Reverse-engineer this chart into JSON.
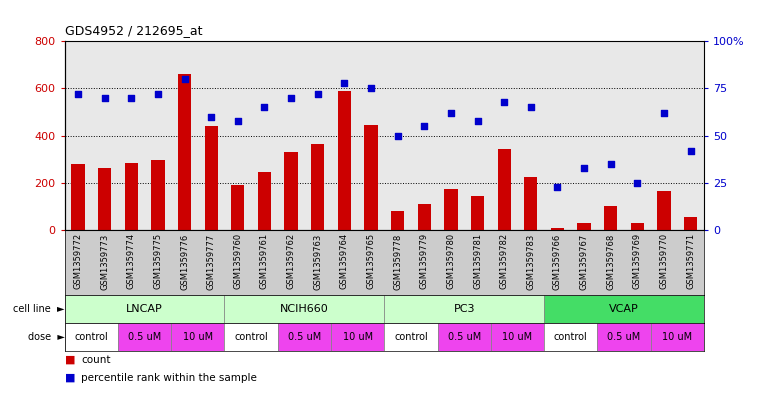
{
  "title": "GDS4952 / 212695_at",
  "samples": [
    "GSM1359772",
    "GSM1359773",
    "GSM1359774",
    "GSM1359775",
    "GSM1359776",
    "GSM1359777",
    "GSM1359760",
    "GSM1359761",
    "GSM1359762",
    "GSM1359763",
    "GSM1359764",
    "GSM1359765",
    "GSM1359778",
    "GSM1359779",
    "GSM1359780",
    "GSM1359781",
    "GSM1359782",
    "GSM1359783",
    "GSM1359766",
    "GSM1359767",
    "GSM1359768",
    "GSM1359769",
    "GSM1359770",
    "GSM1359771"
  ],
  "counts": [
    280,
    265,
    285,
    295,
    660,
    440,
    190,
    245,
    330,
    365,
    590,
    445,
    80,
    110,
    175,
    145,
    345,
    225,
    10,
    30,
    100,
    30,
    165,
    55
  ],
  "percentiles": [
    72,
    70,
    70,
    72,
    80,
    60,
    58,
    65,
    70,
    72,
    78,
    75,
    50,
    55,
    62,
    58,
    68,
    65,
    23,
    33,
    35,
    25,
    62,
    42
  ],
  "cell_line_groups": [
    {
      "name": "LNCAP",
      "start": 0,
      "end": 6,
      "color": "#ccffcc"
    },
    {
      "name": "NCIH660",
      "start": 6,
      "end": 12,
      "color": "#ccffcc"
    },
    {
      "name": "PC3",
      "start": 12,
      "end": 18,
      "color": "#ccffcc"
    },
    {
      "name": "VCAP",
      "start": 18,
      "end": 24,
      "color": "#44dd66"
    }
  ],
  "dose_groups": [
    {
      "name": "control",
      "start": 0,
      "end": 2,
      "color": "#ffffff"
    },
    {
      "name": "0.5 uM",
      "start": 2,
      "end": 4,
      "color": "#ee44ee"
    },
    {
      "name": "10 uM",
      "start": 4,
      "end": 6,
      "color": "#ee44ee"
    },
    {
      "name": "control",
      "start": 6,
      "end": 8,
      "color": "#ffffff"
    },
    {
      "name": "0.5 uM",
      "start": 8,
      "end": 10,
      "color": "#ee44ee"
    },
    {
      "name": "10 uM",
      "start": 10,
      "end": 12,
      "color": "#ee44ee"
    },
    {
      "name": "control",
      "start": 12,
      "end": 14,
      "color": "#ffffff"
    },
    {
      "name": "0.5 uM",
      "start": 14,
      "end": 16,
      "color": "#ee44ee"
    },
    {
      "name": "10 uM",
      "start": 16,
      "end": 18,
      "color": "#ee44ee"
    },
    {
      "name": "control",
      "start": 18,
      "end": 20,
      "color": "#ffffff"
    },
    {
      "name": "0.5 uM",
      "start": 20,
      "end": 22,
      "color": "#ee44ee"
    },
    {
      "name": "10 uM",
      "start": 22,
      "end": 24,
      "color": "#ee44ee"
    }
  ],
  "bar_color": "#cc0000",
  "scatter_color": "#0000cc",
  "ylim_left": [
    0,
    800
  ],
  "ylim_right": [
    0,
    100
  ],
  "yticks_left": [
    0,
    200,
    400,
    600,
    800
  ],
  "yticks_right": [
    0,
    25,
    50,
    75,
    100
  ],
  "plot_bg": "#e8e8e8",
  "xtick_bg": "#cccccc"
}
